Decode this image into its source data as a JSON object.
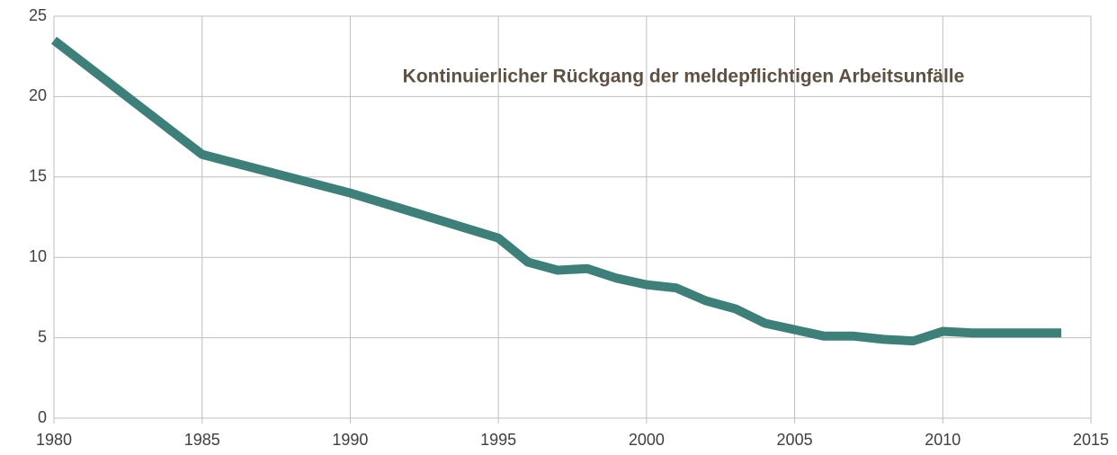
{
  "chart_data": {
    "type": "line",
    "title": "Kontinuierlicher Rückgang der meldepflichtigen Arbeitsunfälle",
    "x": [
      1980,
      1985,
      1990,
      1995,
      1996,
      1997,
      1998,
      1999,
      2000,
      2001,
      2002,
      2003,
      2004,
      2005,
      2006,
      2007,
      2008,
      2009,
      2010,
      2011,
      2012,
      2013,
      2014
    ],
    "values": [
      23.5,
      16.4,
      14.0,
      11.2,
      9.7,
      9.2,
      9.3,
      8.7,
      8.3,
      8.1,
      7.3,
      6.8,
      5.9,
      5.5,
      5.1,
      5.1,
      4.9,
      4.8,
      5.4,
      5.3,
      5.3,
      5.3,
      5.3
    ],
    "color": "#3f7f7a",
    "xlim": [
      1980,
      2015
    ],
    "xticks": [
      1980,
      1985,
      1990,
      1995,
      2000,
      2005,
      2010,
      2015
    ],
    "ylim": [
      0,
      25
    ],
    "yticks": [
      0,
      5,
      10,
      15,
      20,
      25
    ],
    "grid": true
  }
}
